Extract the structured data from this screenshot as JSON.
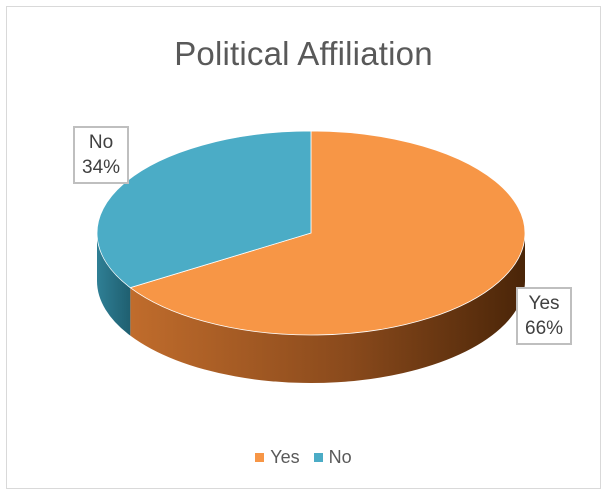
{
  "chart_data": {
    "type": "pie",
    "title": "Political Affiliation",
    "categories": [
      "Yes",
      "No"
    ],
    "values": [
      66,
      34
    ],
    "unit": "%",
    "data_labels": [
      {
        "category": "Yes",
        "value_text": "66%"
      },
      {
        "category": "No",
        "value_text": "34%"
      }
    ],
    "colors": {
      "Yes": "#f79646",
      "No": "#4bacc6"
    },
    "style": "3d",
    "legend": {
      "placement": "bottom",
      "entries": [
        "Yes",
        "No"
      ]
    }
  }
}
